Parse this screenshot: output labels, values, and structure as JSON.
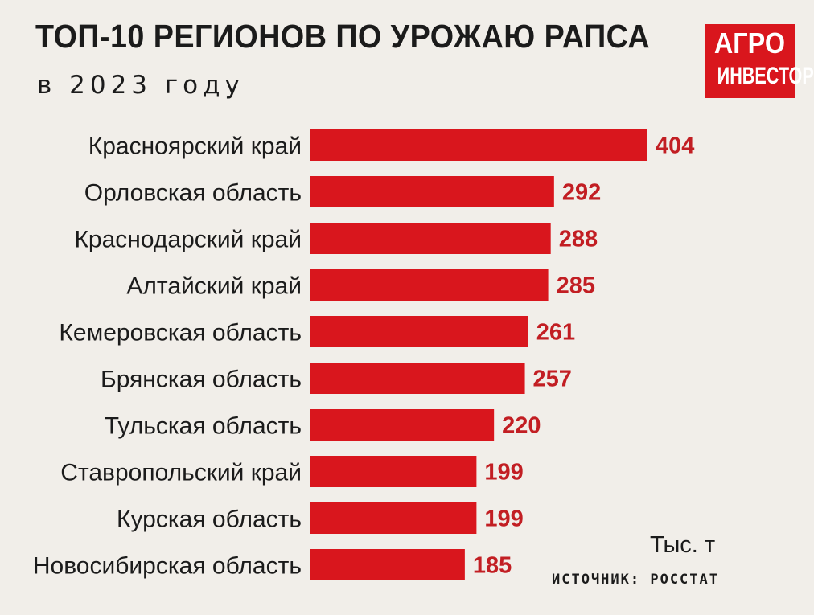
{
  "title": "ТОП-10 РЕГИОНОВ ПО УРОЖАЮ РАПСА",
  "subtitle": "в 2023 году",
  "logo": {
    "line1": "АГРО",
    "line2": "ИНВЕСТОР"
  },
  "unit_label": "Тыс. т",
  "source": "ИСТОЧНИК: РОССТАТ",
  "colors": {
    "bar": "#d9161d",
    "value": "#c21e23",
    "background": "#f1eee9"
  },
  "chart_data": {
    "type": "bar",
    "orientation": "horizontal",
    "categories": [
      "Красноярский край",
      "Орловская область",
      "Краснодарский край",
      "Алтайский край",
      "Кемеровская область",
      "Брянская область",
      "Тульская область",
      "Ставропольский край",
      "Курская область",
      "Новосибирская область"
    ],
    "values": [
      404,
      292,
      288,
      285,
      261,
      257,
      220,
      199,
      199,
      185
    ],
    "xlabel": "",
    "ylabel": "",
    "data_labels": true,
    "grid": false,
    "xlim": [
      0,
      404
    ]
  }
}
